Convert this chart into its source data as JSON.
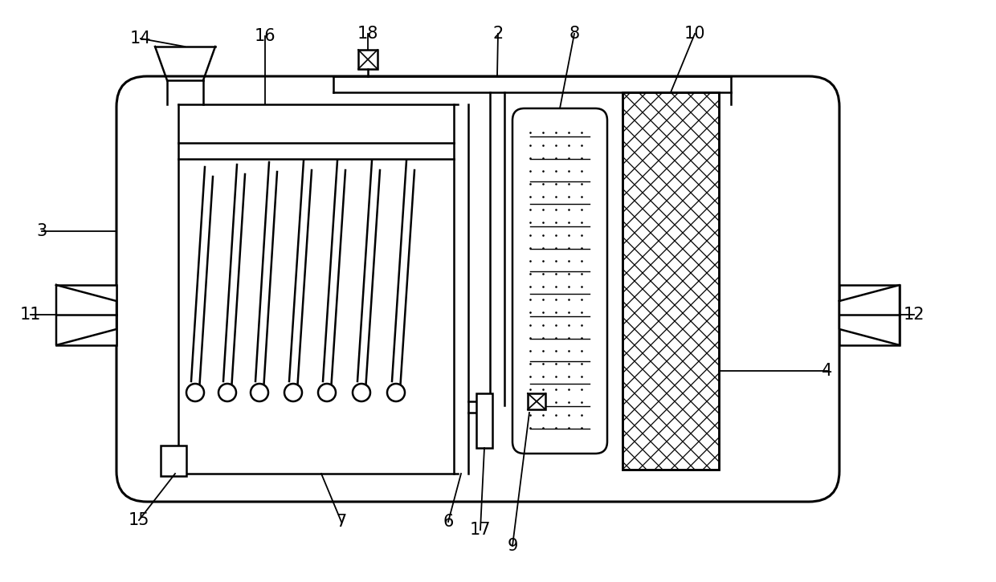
{
  "bg_color": "#ffffff",
  "line_color": "#000000",
  "fig_width": 12.4,
  "fig_height": 7.25,
  "dpi": 100
}
